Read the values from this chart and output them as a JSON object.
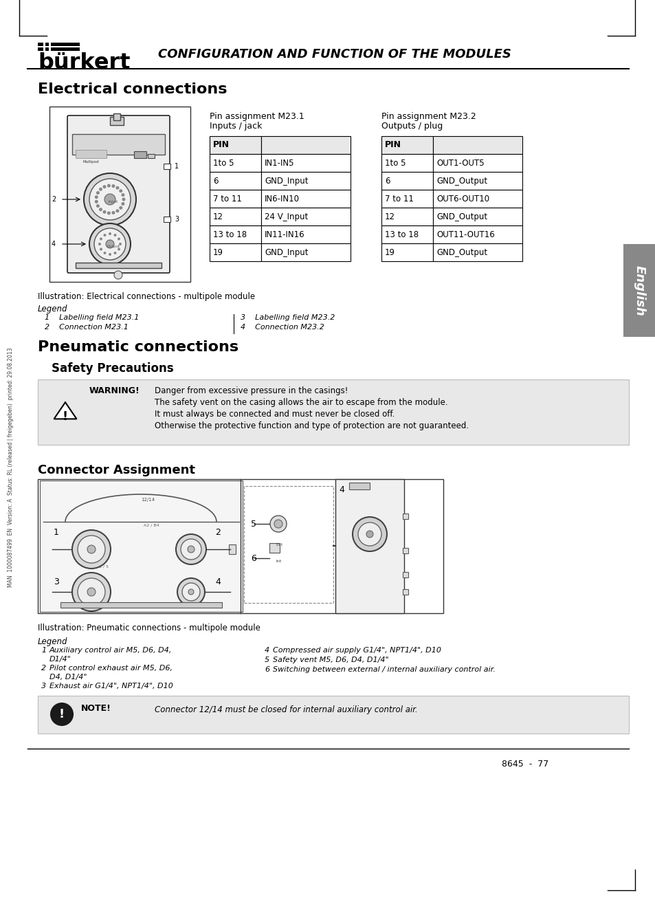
{
  "page_bg": "#ffffff",
  "burkert_text": "bürkert",
  "header_title": "CONFIGURATION AND FUNCTION OF THE MODULES",
  "section1_title": "Electrical connections",
  "pin_table1_title1": "Pin assignment M23.1",
  "pin_table1_title2": "Inputs / jack",
  "pin_table2_title1": "Pin assignment M23.2",
  "pin_table2_title2": "Outputs / plug",
  "table1_rows": [
    [
      "1to 5",
      "IN1-IN5"
    ],
    [
      "6",
      "GND_Input"
    ],
    [
      "7 to 11",
      "IN6-IN10"
    ],
    [
      "12",
      "24 V_Input"
    ],
    [
      "13 to 18",
      "IN11-IN16"
    ],
    [
      "19",
      "GND_Input"
    ]
  ],
  "table2_rows": [
    [
      "1to 5",
      "OUT1-OUT5"
    ],
    [
      "6",
      "GND_Output"
    ],
    [
      "7 to 11",
      "OUT6-OUT10"
    ],
    [
      "12",
      "GND_Output"
    ],
    [
      "13 to 18",
      "OUT11-OUT16"
    ],
    [
      "19",
      "GND_Output"
    ]
  ],
  "illustration_caption1": "Illustration: Electrical connections - multipole module",
  "legend_title": "Legend",
  "legend_items": [
    [
      "1    Labelling field M23.1",
      "3    Labelling field M23.2"
    ],
    [
      "2    Connection M23.1",
      "4    Connection M23.2"
    ]
  ],
  "section2_title": "Pneumatic connections",
  "subsection1_title": "Safety Precautions",
  "warning_label": "WARNING!",
  "warning_lines": [
    "Danger from excessive pressure in the casings!",
    "The safety vent on the casing allows the air to escape from the module.",
    "It must always be connected and must never be closed off.",
    "Otherwise the protective function and type of protection are not guaranteed."
  ],
  "section3_title": "Connector Assignment",
  "illustration_caption2": "Illustration: Pneumatic connections - multipole module",
  "legend2_title": "Legend",
  "legend2_col1": [
    [
      "1",
      "Auxiliary control air M5, D6, D4,",
      "D1/4\""
    ],
    [
      "2",
      "Pilot control exhaust air M5, D6,",
      "D4, D1/4\""
    ],
    [
      "3",
      "Exhaust air G1/4\", NPT1/4\", D10",
      ""
    ]
  ],
  "legend2_col2": [
    [
      "4",
      "Compressed air supply G1/4\", NPT1/4\", D10"
    ],
    [
      "5",
      "Safety vent M5, D6, D4, D1/4\""
    ],
    [
      "6",
      "Switching between external / internal auxiliary control air."
    ]
  ],
  "note_label": "NOTE!",
  "note_text": "Connector 12/14 must be closed for internal auxiliary control air.",
  "side_label": "English",
  "watermark_text": "MAN  1000087499  EN  Version: A  Status: RL (released | freigegeben)  printed: 29.08.2013",
  "page_number": "8645  -  77",
  "english_tab_color": "#888888",
  "warning_box_color": "#e8e8e8",
  "note_box_color": "#e8e8e8"
}
